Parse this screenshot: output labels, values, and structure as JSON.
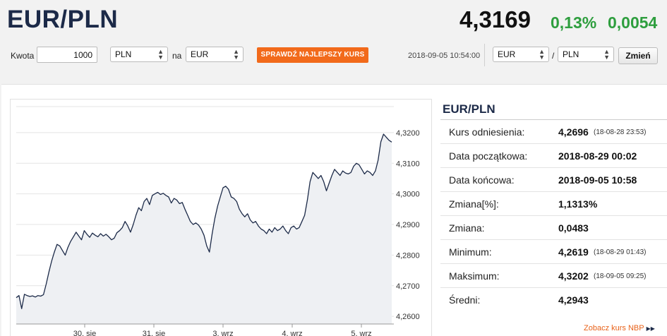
{
  "header": {
    "pair": "EUR/PLN",
    "rate": "4,3169",
    "change_pct": "0,13%",
    "change_abs": "0,0054",
    "colors": {
      "title": "#1c2a48",
      "positive": "#2e9e3e",
      "accent": "#f26a1b"
    }
  },
  "toolbar": {
    "amount_label": "Kwota",
    "amount_value": "1000",
    "from_currency": "PLN",
    "to_label": "na",
    "to_currency": "EUR",
    "best_rate_button": "SPRAWDŹ NAJLEPSZY KURS",
    "timestamp": "2018-09-05 10:54:00",
    "pair_base": "EUR",
    "pair_separator": "/",
    "pair_quote": "PLN",
    "change_button": "Zmień"
  },
  "chart_data": {
    "type": "line",
    "title": "",
    "xlabel": "",
    "ylabel": "",
    "x_ticks": [
      "30. sie",
      "31. sie",
      "3. wrz",
      "4. wrz",
      "5. wrz"
    ],
    "y_ticks": [
      "4,2600",
      "4,2700",
      "4,2800",
      "4,2900",
      "4,3000",
      "4,3100",
      "4,3200"
    ],
    "ylim": [
      4.2575,
      4.3285
    ],
    "grid": "horizontal",
    "series": [
      {
        "values": [
          4.2661,
          4.2668,
          4.2625,
          4.2672,
          4.2668,
          4.2665,
          4.2667,
          4.2663,
          4.2668,
          4.2666,
          4.2671,
          4.2705,
          4.2745,
          4.278,
          4.281,
          4.2835,
          4.283,
          4.2815,
          4.28,
          4.2825,
          4.2845,
          4.286,
          4.2875,
          4.2862,
          4.285,
          4.288,
          4.2868,
          4.2858,
          4.2872,
          4.2865,
          4.286,
          4.287,
          4.2862,
          4.2868,
          4.286,
          4.285,
          4.2855,
          4.2873,
          4.288,
          4.289,
          4.291,
          4.2895,
          4.2875,
          4.29,
          4.293,
          4.2955,
          4.2945,
          4.2975,
          4.2985,
          4.2965,
          4.2995,
          4.3,
          4.3005,
          4.2998,
          4.3002,
          4.2995,
          4.299,
          4.297,
          4.2985,
          4.298,
          4.2968,
          4.2972,
          4.295,
          4.293,
          4.291,
          4.29,
          4.2905,
          4.2898,
          4.2885,
          4.2865,
          4.283,
          4.281,
          4.287,
          4.292,
          4.296,
          4.299,
          4.302,
          4.3025,
          4.3015,
          4.299,
          4.2985,
          4.2975,
          4.295,
          4.2935,
          4.2925,
          4.2935,
          4.2915,
          4.2905,
          4.291,
          4.2895,
          4.2885,
          4.288,
          4.287,
          4.2885,
          4.2875,
          4.289,
          4.288,
          4.2885,
          4.2895,
          4.288,
          4.287,
          4.289,
          4.2895,
          4.2885,
          4.289,
          4.291,
          4.293,
          4.298,
          4.304,
          4.307,
          4.306,
          4.305,
          4.306,
          4.304,
          4.301,
          4.3035,
          4.306,
          4.308,
          4.307,
          4.306,
          4.3075,
          4.3068,
          4.3065,
          4.307,
          4.309,
          4.31,
          4.3095,
          4.308,
          4.3065,
          4.3075,
          4.307,
          4.306,
          4.3075,
          4.311,
          4.317,
          4.3195,
          4.3185,
          4.3175,
          4.3169
        ]
      }
    ]
  },
  "stats": {
    "title": "EUR/PLN",
    "rows": [
      {
        "label": "Kurs odniesienia:",
        "value": "4,2696",
        "date": "(18-08-28 23:53)"
      },
      {
        "label": "Data początkowa:",
        "value": "2018-08-29 00:02",
        "date": ""
      },
      {
        "label": "Data końcowa:",
        "value": "2018-09-05 10:58",
        "date": ""
      },
      {
        "label": "Zmiana[%]:",
        "value": "1,1313%",
        "date": ""
      },
      {
        "label": "Zmiana:",
        "value": "0,0483",
        "date": ""
      },
      {
        "label": "Minimum:",
        "value": "4,2619",
        "date": "(18-08-29 01:43)"
      },
      {
        "label": "Maksimum:",
        "value": "4,3202",
        "date": "(18-09-05 09:25)"
      },
      {
        "label": "Średni:",
        "value": "4,2943",
        "date": ""
      }
    ],
    "nbp_link": "Zobacz kurs NBP",
    "nbp_icon": "double-triangle-right-icon"
  }
}
